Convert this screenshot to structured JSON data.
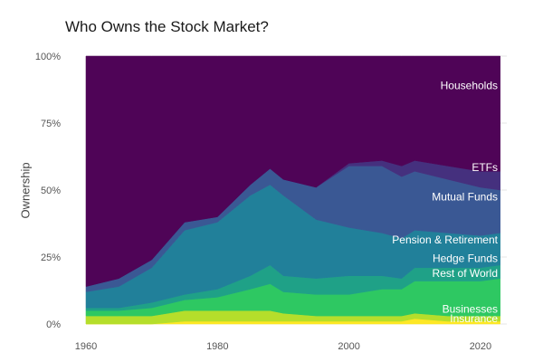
{
  "chart_data": {
    "type": "area",
    "stacked": true,
    "title": "Who Owns the Stock Market?",
    "xlabel": "",
    "ylabel": "Ownership",
    "xlim": [
      1960,
      2024
    ],
    "ylim": [
      0,
      1
    ],
    "y_ticks": [
      "0%",
      "25%",
      "50%",
      "75%",
      "100%"
    ],
    "x_ticks": [
      "1960",
      "1980",
      "2000",
      "2020"
    ],
    "grid": true,
    "legend": "labels placed inside areas (right side)",
    "x": [
      1960,
      1965,
      1970,
      1975,
      1980,
      1985,
      1988,
      1990,
      1995,
      2000,
      2005,
      2008,
      2010,
      2015,
      2020,
      2023
    ],
    "series": [
      {
        "name": "Insurance",
        "color": "#fde725",
        "values": [
          0.0,
          0.0,
          0.0,
          0.01,
          0.01,
          0.01,
          0.01,
          0.01,
          0.01,
          0.01,
          0.01,
          0.01,
          0.02,
          0.01,
          0.01,
          0.01
        ]
      },
      {
        "name": "Businesses",
        "color": "#b5de2b",
        "values": [
          0.03,
          0.03,
          0.03,
          0.04,
          0.04,
          0.04,
          0.04,
          0.03,
          0.02,
          0.02,
          0.02,
          0.02,
          0.02,
          0.02,
          0.02,
          0.02
        ]
      },
      {
        "name": "Rest of World",
        "color": "#2ec862",
        "values": [
          0.02,
          0.02,
          0.03,
          0.04,
          0.05,
          0.08,
          0.1,
          0.08,
          0.08,
          0.08,
          0.1,
          0.1,
          0.12,
          0.13,
          0.13,
          0.14
        ]
      },
      {
        "name": "Hedge Funds",
        "color": "#1fa187",
        "values": [
          0.01,
          0.01,
          0.02,
          0.02,
          0.03,
          0.05,
          0.07,
          0.06,
          0.06,
          0.07,
          0.05,
          0.04,
          0.05,
          0.05,
          0.05,
          0.05
        ]
      },
      {
        "name": "Pension & Retirement",
        "color": "#21809a",
        "values": [
          0.06,
          0.08,
          0.13,
          0.24,
          0.25,
          0.3,
          0.3,
          0.3,
          0.22,
          0.18,
          0.16,
          0.15,
          0.14,
          0.13,
          0.12,
          0.12
        ]
      },
      {
        "name": "Mutual Funds",
        "color": "#3a5894",
        "values": [
          0.02,
          0.03,
          0.03,
          0.03,
          0.02,
          0.04,
          0.06,
          0.06,
          0.12,
          0.23,
          0.25,
          0.23,
          0.22,
          0.2,
          0.18,
          0.16
        ]
      },
      {
        "name": "ETFs",
        "color": "#45307e",
        "values": [
          0.0,
          0.0,
          0.0,
          0.0,
          0.0,
          0.0,
          0.0,
          0.0,
          0.0,
          0.01,
          0.02,
          0.04,
          0.04,
          0.05,
          0.06,
          0.07
        ]
      },
      {
        "name": "Households",
        "color": "#4f0457",
        "values": [
          0.86,
          0.83,
          0.76,
          0.62,
          0.6,
          0.48,
          0.42,
          0.46,
          0.49,
          0.4,
          0.39,
          0.41,
          0.39,
          0.41,
          0.43,
          0.43
        ]
      }
    ]
  }
}
